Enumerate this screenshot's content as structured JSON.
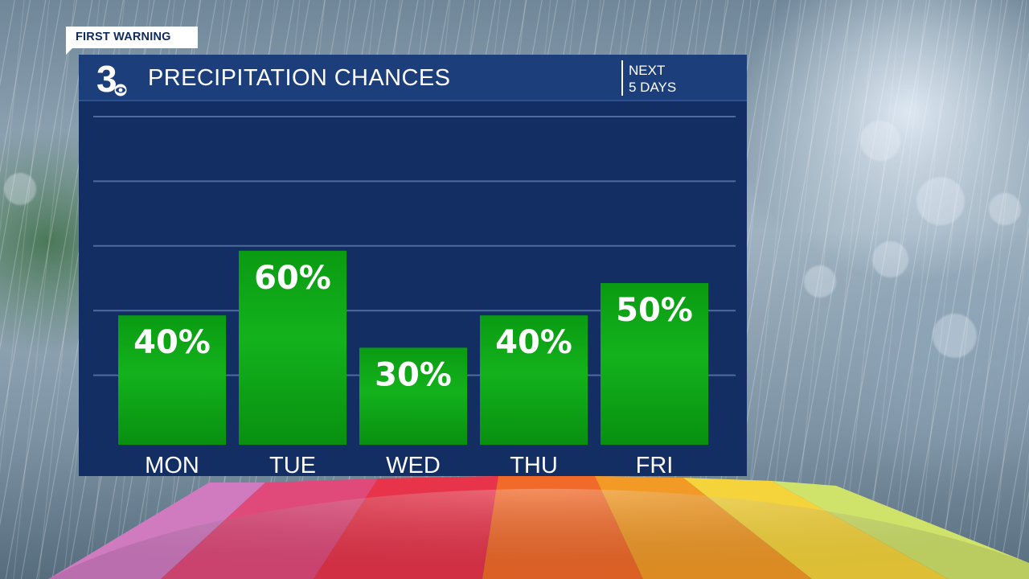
{
  "banner": {
    "label": "FIRST WARNING"
  },
  "header": {
    "logo_text": "3",
    "title": "PRECIPITATION CHANCES",
    "range_line1": "NEXT",
    "range_line2": "5 DAYS"
  },
  "colors": {
    "panel": "#132e63",
    "header": "#1c3e7a",
    "bar": "#0a9e13",
    "bar_highlight": "#13b21c",
    "gridline": "#4f6b9e",
    "text": "#ffffff"
  },
  "chart_data": {
    "type": "bar",
    "categories": [
      "MON",
      "TUE",
      "WED",
      "THU",
      "FRI"
    ],
    "values": [
      40,
      60,
      30,
      40,
      50
    ],
    "data_labels": [
      "40%",
      "60%",
      "30%",
      "40%",
      "50%"
    ],
    "unit": "%",
    "ylim": [
      0,
      100
    ],
    "grid": true,
    "gridline_step": 20,
    "title": "PRECIPITATION CHANCES"
  }
}
